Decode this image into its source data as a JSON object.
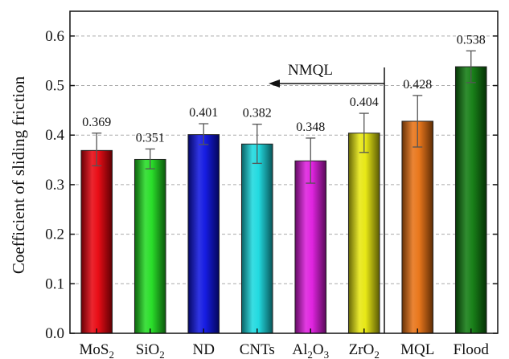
{
  "chart_data": {
    "type": "bar",
    "ylabel": "Coefficient of sliding friction",
    "ylim": [
      0.0,
      0.65
    ],
    "yticks": [
      "0.0",
      "0.1",
      "0.2",
      "0.3",
      "0.4",
      "0.5",
      "0.6"
    ],
    "grid": true,
    "categories": [
      {
        "base": "MoS",
        "sub": "2",
        "after": ""
      },
      {
        "base": "SiO",
        "sub": "2",
        "after": ""
      },
      {
        "base": "ND",
        "sub": "",
        "after": ""
      },
      {
        "base": "CNTs",
        "sub": "",
        "after": ""
      },
      {
        "base": "Al",
        "sub": "2",
        "after": "O",
        "sub2": "3"
      },
      {
        "base": "ZrO",
        "sub": "2",
        "after": ""
      },
      {
        "base": "MQL",
        "sub": "",
        "after": ""
      },
      {
        "base": "Flood",
        "sub": "",
        "after": ""
      }
    ],
    "values": [
      0.369,
      0.351,
      0.401,
      0.382,
      0.348,
      0.404,
      0.428,
      0.538
    ],
    "value_labels": [
      "0.369",
      "0.351",
      "0.401",
      "0.382",
      "0.348",
      "0.404",
      "0.428",
      "0.538"
    ],
    "error_upper": [
      0.404,
      0.372,
      0.423,
      0.422,
      0.394,
      0.444,
      0.48,
      0.57
    ],
    "error_lower": [
      0.338,
      0.332,
      0.381,
      0.343,
      0.303,
      0.365,
      0.376,
      0.506
    ],
    "colors": [
      "#e8000a",
      "#1fdc1f",
      "#0a10e0",
      "#16d8de",
      "#de18de",
      "#e6e60a",
      "#e87010",
      "#0d7a0d"
    ],
    "annotation": {
      "text": "NMQL"
    }
  }
}
